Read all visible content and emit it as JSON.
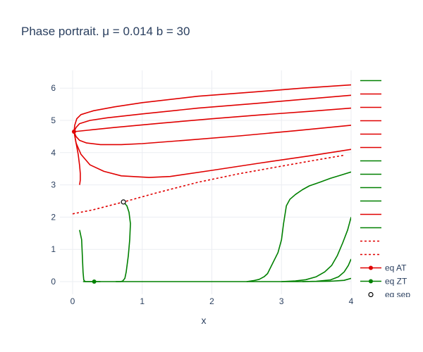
{
  "chart_data": {
    "type": "line",
    "title": "Phase portrait. μ = 0.014 b = 30",
    "xlabel": "x",
    "ylabel": "",
    "xlim": [
      -0.15,
      4
    ],
    "ylim": [
      -0.3,
      6.5
    ],
    "xticks": [
      "0",
      "1",
      "2",
      "3",
      "4"
    ],
    "yticks": [
      "0",
      "1",
      "2",
      "3",
      "4",
      "5",
      "6"
    ],
    "grid": true,
    "legend": "right",
    "series": [
      {
        "color": "#008000",
        "dash": "solid",
        "marker": "none",
        "x": [
          2.5,
          2.6,
          2.68,
          2.75,
          2.8,
          2.95,
          3.0,
          3.03,
          3.07,
          3.12,
          3.2,
          3.3,
          3.4,
          3.55,
          3.7,
          3.85,
          4.0
        ],
        "y": [
          0,
          0.03,
          0.07,
          0.15,
          0.25,
          0.9,
          1.3,
          1.8,
          2.35,
          2.55,
          2.7,
          2.85,
          2.97,
          3.08,
          3.2,
          3.3,
          3.4
        ]
      },
      {
        "color": "#008000",
        "dash": "solid",
        "marker": "none",
        "x": [
          3.0,
          3.2,
          3.35,
          3.5,
          3.62,
          3.72,
          3.8,
          3.88,
          3.95,
          4.0
        ],
        "y": [
          0,
          0.02,
          0.06,
          0.15,
          0.3,
          0.5,
          0.8,
          1.2,
          1.6,
          2.0
        ]
      },
      {
        "color": "#008000",
        "dash": "solid",
        "marker": "none",
        "x": [
          3.3,
          3.5,
          3.7,
          3.82,
          3.9,
          3.96,
          4.0
        ],
        "y": [
          0,
          0.01,
          0.05,
          0.15,
          0.3,
          0.5,
          0.7
        ]
      },
      {
        "color": "#008000",
        "dash": "solid",
        "marker": "none",
        "x": [
          0.15,
          2.5,
          3.3,
          3.7,
          3.9,
          4.0
        ],
        "y": [
          0,
          0,
          0,
          0.01,
          0.04,
          0.1
        ]
      },
      {
        "color": "#008000",
        "dash": "solid",
        "marker": "none",
        "x": [
          0.1,
          0.13,
          0.14,
          0.15,
          0.16,
          0.18,
          0.25,
          0.4
        ],
        "y": [
          1.6,
          1.3,
          0.8,
          0.3,
          0.05,
          0,
          0,
          0
        ]
      },
      {
        "color": "#008000",
        "dash": "solid",
        "marker": "none",
        "x": [
          0.73,
          0.78,
          0.81,
          0.83,
          0.82,
          0.8,
          0.77,
          0.75,
          0.72,
          0.69,
          0.62
        ],
        "y": [
          2.47,
          2.35,
          2.15,
          1.8,
          1.3,
          0.8,
          0.3,
          0.1,
          0.02,
          0,
          0
        ]
      },
      {
        "color": "#e00000",
        "dash": "solid",
        "marker": "none",
        "x": [
          0.02,
          0.03,
          0.06,
          0.12,
          0.3,
          0.6,
          1.0,
          1.8,
          2.6,
          3.3,
          4.0
        ],
        "y": [
          4.65,
          4.85,
          5.05,
          5.18,
          5.3,
          5.42,
          5.55,
          5.75,
          5.88,
          6.0,
          6.1
        ]
      },
      {
        "color": "#e00000",
        "dash": "solid",
        "marker": "none",
        "x": [
          0.02,
          0.05,
          0.1,
          0.25,
          0.5,
          1.0,
          1.8,
          2.6,
          3.3,
          4.0
        ],
        "y": [
          4.65,
          4.78,
          4.9,
          5.0,
          5.08,
          5.2,
          5.38,
          5.52,
          5.65,
          5.78
        ]
      },
      {
        "color": "#e00000",
        "dash": "solid",
        "marker": "none",
        "x": [
          0.02,
          0.6,
          1.3,
          2.0,
          2.7,
          3.4,
          4.0
        ],
        "y": [
          4.65,
          4.78,
          4.92,
          5.05,
          5.17,
          5.28,
          5.38
        ]
      },
      {
        "color": "#e00000",
        "dash": "solid",
        "marker": "none",
        "x": [
          0.02,
          0.05,
          0.1,
          0.2,
          0.4,
          0.7,
          1.0,
          1.6,
          2.4,
          3.2,
          4.0
        ],
        "y": [
          4.65,
          4.5,
          4.38,
          4.3,
          4.25,
          4.25,
          4.28,
          4.38,
          4.52,
          4.68,
          4.85
        ]
      },
      {
        "color": "#e00000",
        "dash": "solid",
        "marker": "none",
        "x": [
          0.02,
          0.05,
          0.12,
          0.25,
          0.45,
          0.7,
          1.1,
          1.4,
          2.0,
          2.7,
          3.4,
          4.0
        ],
        "y": [
          4.65,
          4.3,
          3.95,
          3.62,
          3.42,
          3.28,
          3.23,
          3.26,
          3.45,
          3.68,
          3.9,
          4.1
        ]
      },
      {
        "color": "#e00000",
        "dash": "solid",
        "marker": "none",
        "x": [
          0.02,
          0.05,
          0.08,
          0.1,
          0.11,
          0.11,
          0.1
        ],
        "y": [
          4.65,
          4.3,
          3.95,
          3.6,
          3.35,
          3.15,
          3.0
        ]
      },
      {
        "color": "#e00000",
        "dash": "dot",
        "marker": "none",
        "x": [
          0.0,
          0.3,
          0.73,
          1.2,
          1.8,
          2.4,
          3.0,
          3.5,
          3.9
        ],
        "y": [
          2.1,
          2.23,
          2.47,
          2.75,
          3.08,
          3.35,
          3.58,
          3.77,
          3.92
        ]
      },
      {
        "color": "#e00000",
        "dash": "solid",
        "marker": "circle-filled",
        "x": [
          0.02
        ],
        "y": [
          4.65
        ]
      },
      {
        "color": "#008000",
        "dash": "solid",
        "marker": "circle-filled",
        "x": [
          0.31
        ],
        "y": [
          0
        ]
      },
      {
        "color": "#000000",
        "dash": "solid",
        "marker": "circle-open",
        "x": [
          0.73
        ],
        "y": [
          2.47
        ]
      }
    ],
    "legend_entries": [
      {
        "color": "#008000",
        "dash": "solid",
        "marker": "none",
        "label": ""
      },
      {
        "color": "#e00000",
        "dash": "solid",
        "marker": "none",
        "label": ""
      },
      {
        "color": "#e00000",
        "dash": "solid",
        "marker": "none",
        "label": ""
      },
      {
        "color": "#e00000",
        "dash": "solid",
        "marker": "none",
        "label": ""
      },
      {
        "color": "#e00000",
        "dash": "solid",
        "marker": "none",
        "label": ""
      },
      {
        "color": "#e00000",
        "dash": "solid",
        "marker": "none",
        "label": ""
      },
      {
        "color": "#008000",
        "dash": "solid",
        "marker": "none",
        "label": ""
      },
      {
        "color": "#008000",
        "dash": "solid",
        "marker": "none",
        "label": ""
      },
      {
        "color": "#008000",
        "dash": "solid",
        "marker": "none",
        "label": ""
      },
      {
        "color": "#008000",
        "dash": "solid",
        "marker": "none",
        "label": ""
      },
      {
        "color": "#e00000",
        "dash": "solid",
        "marker": "none",
        "label": ""
      },
      {
        "color": "#008000",
        "dash": "solid",
        "marker": "none",
        "label": ""
      },
      {
        "color": "#e00000",
        "dash": "dot",
        "marker": "none",
        "label": ""
      },
      {
        "color": "#e00000",
        "dash": "dot",
        "marker": "none",
        "label": ""
      },
      {
        "color": "#e00000",
        "dash": "solid",
        "marker": "circle-filled",
        "label": "eq AT"
      },
      {
        "color": "#008000",
        "dash": "solid",
        "marker": "circle-filled",
        "label": "eq ZT"
      },
      {
        "color": "#000000",
        "dash": "none",
        "marker": "circle-open",
        "label": "eq sep"
      }
    ]
  }
}
